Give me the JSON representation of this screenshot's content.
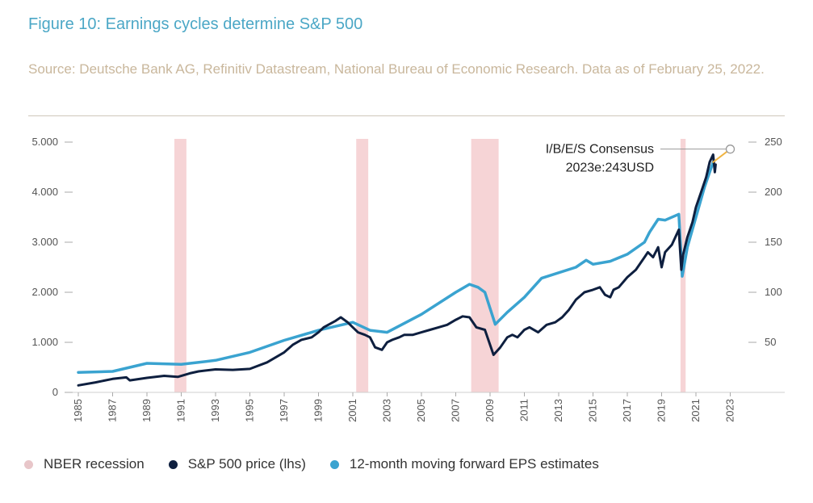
{
  "title": "Figure 10: Earnings cycles determine S&P 500",
  "source": "Source: Deutsche Bank AG, Refinitiv Datastream, National Bureau of Economic Research. Data as of February 25, 2022.",
  "colors": {
    "title": "#4ba7c6",
    "source": "#c9b79c",
    "sp500": "#0e1f3f",
    "eps": "#3aa3d0",
    "recession": "#f6d4d6",
    "recession_legend": "#e8c6c9",
    "forecast": "#f0b442"
  },
  "chart_data": {
    "type": "line",
    "x_ticks": [
      "1985",
      "1987",
      "1989",
      "1991",
      "1993",
      "1995",
      "1997",
      "1999",
      "2001",
      "2003",
      "2005",
      "2007",
      "2009",
      "2011",
      "2013",
      "2015",
      "2017",
      "2019",
      "2021",
      "2023"
    ],
    "xlim": [
      1985,
      2025
    ],
    "left_axis": {
      "ticks": [
        0,
        1000,
        2000,
        3000,
        4000,
        5000
      ],
      "labels": [
        "0",
        "1.000",
        "2.000",
        "3.000",
        "4.000",
        "5.000"
      ],
      "ylim": [
        0,
        5000
      ]
    },
    "right_axis": {
      "ticks": [
        50,
        100,
        150,
        200,
        250
      ],
      "labels": [
        "50",
        "100",
        "150",
        "200",
        "250"
      ],
      "ylim": [
        0,
        250
      ]
    },
    "recessions": [
      [
        1990.6,
        1991.3
      ],
      [
        2001.2,
        2001.9
      ],
      [
        2007.9,
        2009.5
      ],
      [
        2020.1,
        2020.4
      ]
    ],
    "annotation": {
      "line1": "I/B/E/S Consensus",
      "line2": "2023e:243USD",
      "year": 2023,
      "value": 243
    },
    "series": [
      {
        "name": "S&P 500 price (lhs)",
        "axis": "left",
        "x": [
          1985,
          1986,
          1987,
          1987.8,
          1988,
          1989,
          1990,
          1990.8,
          1991.5,
          1992,
          1993,
          1994,
          1995,
          1996,
          1997,
          1997.5,
          1998,
          1998.6,
          1999,
          1999.3,
          2000,
          2000.3,
          2000.7,
          2001,
          2001.3,
          2001.7,
          2002,
          2002.3,
          2002.7,
          2003,
          2003.3,
          2003.7,
          2004,
          2004.5,
          2005,
          2005.5,
          2006,
          2006.5,
          2007,
          2007.4,
          2007.8,
          2008.2,
          2008.7,
          2009.2,
          2009.6,
          2010,
          2010.3,
          2010.6,
          2011,
          2011.3,
          2011.8,
          2012.3,
          2012.8,
          2013.2,
          2013.6,
          2014,
          2014.5,
          2015,
          2015.4,
          2015.7,
          2016,
          2016.2,
          2016.5,
          2017,
          2017.5,
          2018,
          2018.2,
          2018.5,
          2018.8,
          2019,
          2019.2,
          2019.6,
          2019.8,
          2020,
          2020.15,
          2020.25,
          2020.5,
          2020.8,
          2021,
          2021.3,
          2021.6,
          2021.8,
          2022,
          2022.1,
          2022.15
        ],
        "values": [
          140,
          200,
          270,
          300,
          240,
          290,
          330,
          310,
          380,
          420,
          460,
          450,
          470,
          600,
          800,
          950,
          1050,
          1100,
          1200,
          1300,
          1430,
          1500,
          1400,
          1300,
          1200,
          1150,
          1100,
          900,
          850,
          1000,
          1050,
          1100,
          1150,
          1150,
          1200,
          1250,
          1300,
          1350,
          1450,
          1520,
          1500,
          1300,
          1250,
          750,
          900,
          1100,
          1150,
          1100,
          1250,
          1300,
          1200,
          1350,
          1400,
          1500,
          1650,
          1850,
          2000,
          2050,
          2100,
          1950,
          1900,
          2050,
          2100,
          2300,
          2450,
          2700,
          2800,
          2700,
          2900,
          2500,
          2800,
          2950,
          3100,
          3250,
          2450,
          2750,
          3100,
          3400,
          3700,
          4000,
          4300,
          4600,
          4750,
          4400,
          4550
        ]
      },
      {
        "name": "12-month moving forward EPS estimates",
        "axis": "right",
        "x": [
          1985,
          1987,
          1989,
          1991,
          1993,
          1995,
          1997,
          1999,
          2001,
          2002,
          2003,
          2005,
          2007,
          2007.8,
          2008.3,
          2008.7,
          2009.3,
          2010,
          2011,
          2012,
          2014,
          2014.6,
          2015,
          2016,
          2017,
          2018,
          2018.3,
          2018.8,
          2019.2,
          2020,
          2020.2,
          2020.5,
          2021,
          2021.5,
          2022
        ],
        "values": [
          20,
          21,
          29,
          28,
          32,
          40,
          52,
          62,
          70,
          62,
          60,
          78,
          100,
          108,
          105,
          100,
          68,
          80,
          95,
          114,
          125,
          132,
          128,
          131,
          138,
          150,
          160,
          173,
          172,
          178,
          116,
          145,
          175,
          205,
          230
        ]
      },
      {
        "name": "I/B/E/S Consensus forecast",
        "axis": "right",
        "x": [
          2022,
          2023
        ],
        "values": [
          230,
          243
        ]
      }
    ]
  },
  "legend": [
    {
      "label": "NBER recession"
    },
    {
      "label": "S&P 500 price (lhs)"
    },
    {
      "label": "12-month moving forward EPS estimates"
    }
  ]
}
